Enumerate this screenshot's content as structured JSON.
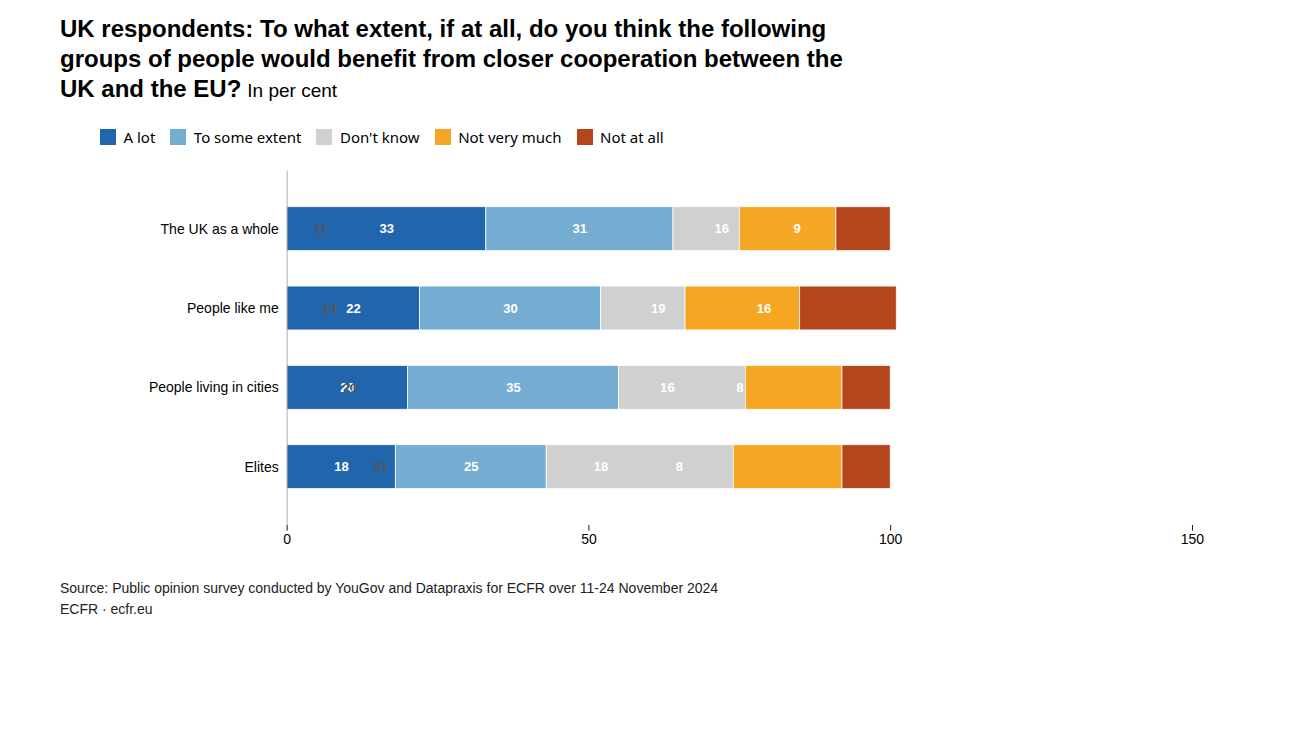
{
  "chart_data": {
    "type": "bar",
    "orientation": "horizontal",
    "stacked": true,
    "title": "UK respondents: To what extent, if at all, do you think the following\ngroups of people would benefit from closer cooperation between the\nUK and the EU?",
    "subtitle": "In per cent",
    "annotations": [
      "Source: Public opinion survey conducted by YouGov and Datapraxis for ECFR over 11-24 November 2024",
      "ECFR · ecfr.eu"
    ],
    "categories": [
      "The UK as a whole",
      "People like me",
      "People living in cities",
      "Elites"
    ],
    "series": [
      {
        "name": "A lot",
        "color": "#2166ac",
        "values": [
          33,
          22,
          20,
          18
        ]
      },
      {
        "name": "To some extent",
        "color": "#74add1",
        "values": [
          31,
          30,
          35,
          25
        ]
      },
      {
        "name": "Don't know",
        "color": "#d0d0d0",
        "values": [
          11,
          14,
          21,
          31
        ]
      },
      {
        "name": "Not very much",
        "color": "#f5a623",
        "values": [
          16,
          19,
          16,
          18
        ]
      },
      {
        "name": "Not at all",
        "color": "#b5451b",
        "values": [
          9,
          16,
          8,
          8
        ]
      }
    ],
    "xlim": [
      0,
      150
    ],
    "xticks": [
      0,
      50,
      100,
      150
    ],
    "data_labels": true,
    "legend": "top left",
    "grid": false
  }
}
